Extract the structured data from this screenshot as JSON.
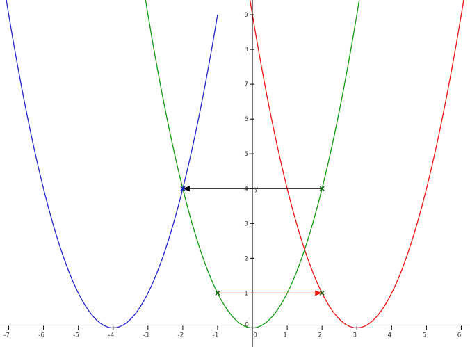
{
  "chart_data": {
    "type": "line",
    "title": "",
    "xlabel": "",
    "ylabel": "y",
    "xlim": [
      -7.25,
      6.25
    ],
    "ylim": [
      -0.55,
      9.42
    ],
    "grid": false,
    "x_ticks": [
      -7,
      -6,
      -5,
      -4,
      -3,
      -2,
      -1,
      0,
      1,
      2,
      3,
      4,
      5,
      6
    ],
    "y_ticks": [
      0,
      1,
      2,
      3,
      4,
      5,
      6,
      7,
      8,
      9
    ],
    "series": [
      {
        "function": "(x+4)^2",
        "x_range": [
          -7.25,
          -1
        ],
        "color": "#2222cc"
      },
      {
        "function": "x^2",
        "x_range": [
          -3.1,
          3.1
        ],
        "color": "#119911"
      },
      {
        "function": "(x-3)^2",
        "x_range": [
          -0.1,
          6.25
        ],
        "color": "#ee1111"
      }
    ],
    "points": [
      {
        "x": -1,
        "y": 1,
        "color": "#116611"
      },
      {
        "x": 2,
        "y": 1,
        "color": "#116611"
      },
      {
        "x": 2,
        "y": 4,
        "color": "#116611"
      },
      {
        "x": -2,
        "y": 4,
        "color": "#1111cc"
      }
    ],
    "arrows": [
      {
        "from": [
          -1,
          1
        ],
        "to": [
          2,
          1
        ],
        "color": "#ee1111"
      },
      {
        "from": [
          2,
          4
        ],
        "to": [
          -2,
          4
        ],
        "color": "#000000"
      }
    ]
  }
}
